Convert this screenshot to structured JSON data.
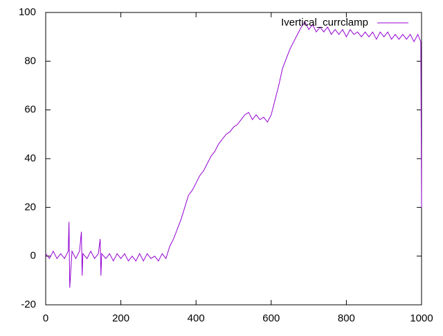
{
  "chart_data": {
    "type": "line",
    "x": [
      0,
      10,
      20,
      30,
      40,
      50,
      60,
      62,
      64,
      70,
      80,
      90,
      95,
      97,
      99,
      110,
      120,
      130,
      140,
      145,
      147,
      149,
      160,
      170,
      180,
      190,
      200,
      210,
      220,
      230,
      240,
      250,
      260,
      270,
      280,
      290,
      300,
      310,
      320,
      330,
      340,
      350,
      360,
      370,
      380,
      390,
      400,
      410,
      420,
      430,
      440,
      450,
      460,
      470,
      480,
      490,
      500,
      510,
      520,
      530,
      540,
      550,
      560,
      570,
      580,
      590,
      600,
      610,
      620,
      630,
      640,
      650,
      660,
      670,
      680,
      690,
      700,
      710,
      720,
      730,
      740,
      750,
      760,
      770,
      780,
      790,
      800,
      810,
      820,
      830,
      840,
      850,
      860,
      870,
      880,
      890,
      900,
      910,
      920,
      930,
      940,
      950,
      960,
      970,
      980,
      990,
      998,
      1000
    ],
    "series": [
      {
        "name": "Ivertical_currclamp",
        "color": "#9400d3",
        "values": [
          1,
          -1,
          2,
          -1,
          1,
          -1,
          2,
          14,
          -13,
          2,
          -1,
          2,
          10,
          -8,
          1,
          -1,
          2,
          -1,
          1,
          7,
          -8,
          1,
          -1,
          1,
          -2,
          1,
          -1,
          1,
          -2,
          0,
          -2,
          1,
          -2,
          1,
          -1,
          0,
          -2,
          1,
          -1,
          4,
          7,
          11,
          15,
          20,
          25,
          27,
          30,
          33,
          35,
          38,
          41,
          43,
          46,
          48,
          50,
          51,
          53,
          54,
          56,
          58,
          59,
          56,
          58,
          56,
          57,
          55,
          58,
          64,
          70,
          77,
          81,
          85,
          88,
          91,
          94,
          96,
          93,
          95,
          92,
          94,
          92,
          94,
          91,
          93,
          91,
          93,
          90,
          93,
          91,
          92,
          90,
          92,
          90,
          92,
          89,
          92,
          90,
          92,
          89,
          91,
          89,
          91,
          89,
          91,
          88,
          91,
          88,
          20
        ]
      }
    ],
    "xlim": [
      0,
      1000
    ],
    "xticks": [
      0,
      200,
      400,
      600,
      800,
      1000
    ],
    "ylim": [
      -20,
      100
    ],
    "yticks": [
      -20,
      0,
      20,
      40,
      60,
      80,
      100
    ]
  }
}
